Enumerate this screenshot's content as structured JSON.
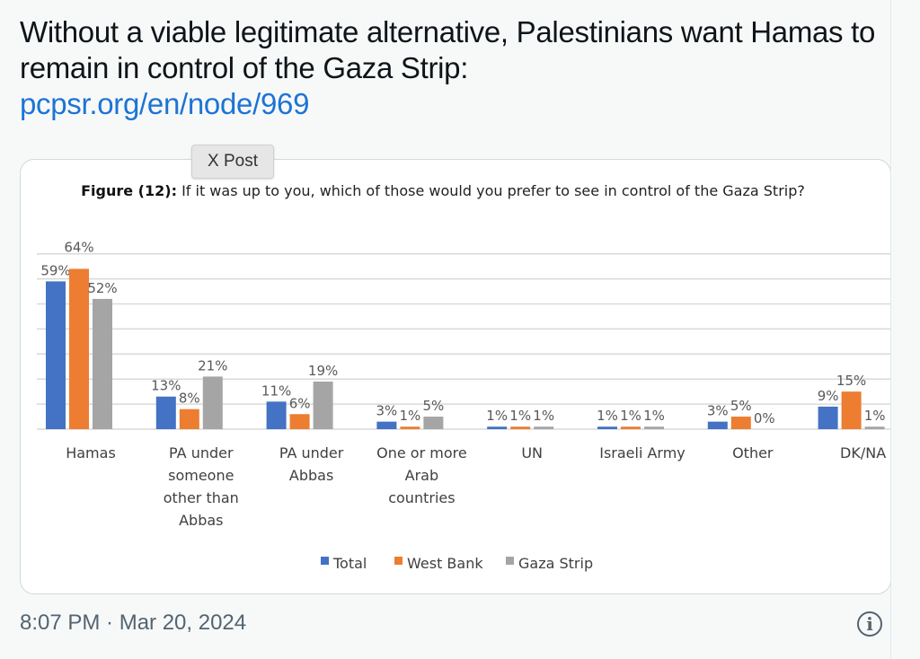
{
  "tweet": {
    "text": "Without a viable legitimate alternative, Palestinians want Hamas to remain in control of the Gaza Strip:",
    "link": "pcpsr.org/en/node/969",
    "tooltip": "X Post",
    "timestamp": "8:07 PM · Mar 20, 2024",
    "info_icon": "info-icon"
  },
  "chart_data": {
    "type": "bar",
    "title_bold": "Figure (12):",
    "title": "If it was up to you, which of those would you prefer to see in control of the Gaza Strip?",
    "categories": [
      "Hamas",
      "PA under someone other than Abbas",
      "PA under Abbas",
      "One or more Arab countries",
      "UN",
      "Israeli Army",
      "Other",
      "DK/NA"
    ],
    "category_lines": [
      [
        "Hamas"
      ],
      [
        "PA under",
        "someone",
        "other than",
        "Abbas"
      ],
      [
        "PA under",
        "Abbas"
      ],
      [
        "One or more",
        "Arab",
        "countries"
      ],
      [
        "UN"
      ],
      [
        "Israeli Army"
      ],
      [
        "Other"
      ],
      [
        "DK/NA"
      ]
    ],
    "series": [
      {
        "name": "Total",
        "color": "#4472c4",
        "values": [
          59,
          13,
          11,
          3,
          1,
          1,
          3,
          9
        ]
      },
      {
        "name": "West Bank",
        "color": "#ed7d31",
        "values": [
          64,
          8,
          6,
          1,
          1,
          1,
          5,
          15
        ]
      },
      {
        "name": "Gaza Strip",
        "color": "#a5a5a5",
        "values": [
          52,
          21,
          19,
          5,
          1,
          1,
          0,
          1
        ]
      }
    ],
    "ylim": [
      0,
      70
    ],
    "grid": true,
    "legend": "bottom"
  }
}
